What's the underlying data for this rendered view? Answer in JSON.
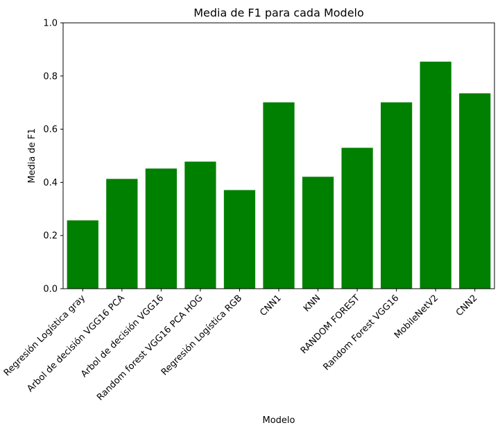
{
  "chart_data": {
    "type": "bar",
    "title": "Media de F1 para cada Modelo",
    "xlabel": "Modelo",
    "ylabel": "Media de F1",
    "categories": [
      "Regresión Logística gray",
      "Arbol de decisión VGG16 PCA",
      "Arbol de decisión VGG16",
      "Random forest VGG16 PCA HOG",
      "Regresión Logística RGB",
      "CNN1",
      "KNN",
      "RANDOM FOREST",
      "Random Forest VGG16",
      "MobileNetV2",
      "CNN2"
    ],
    "values": [
      0.257,
      0.413,
      0.452,
      0.478,
      0.371,
      0.701,
      0.421,
      0.53,
      0.701,
      0.854,
      0.735
    ],
    "ylim": [
      0,
      1.0
    ],
    "yticks": [
      "0.0",
      "0.2",
      "0.4",
      "0.6",
      "0.8",
      "1.0"
    ],
    "bar_color": "#008000",
    "grid": false,
    "legend": "none"
  }
}
